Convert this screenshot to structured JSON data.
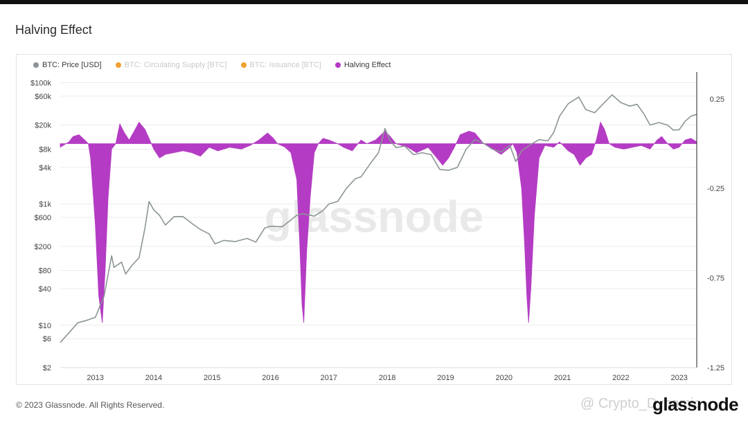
{
  "page": {
    "title": "Halving Effect",
    "footer": "© 2023 Glassnode. All Rights Reserved.",
    "brand": "glassnode",
    "social_overlay": "@ Crypto_Dynamic",
    "watermark": "glassnode"
  },
  "legend": [
    {
      "label": "BTC: Price [USD]",
      "color": "#8c9496",
      "muted": false
    },
    {
      "label": "BTC: Circulating Supply [BTC]",
      "color": "#f0a030",
      "muted": true
    },
    {
      "label": "BTC: Issuance [BTC]",
      "color": "#f0a030",
      "muted": true
    },
    {
      "label": "Halving Effect",
      "color": "#b43cc4",
      "muted": false
    }
  ],
  "chart_data": {
    "type": "line",
    "title": "Halving Effect",
    "x_ticks": [
      "2013",
      "2014",
      "2015",
      "2016",
      "2017",
      "2018",
      "2019",
      "2020",
      "2021",
      "2022",
      "2023"
    ],
    "xlim": [
      2012.4,
      2023.3
    ],
    "left_axis": {
      "scale": "log",
      "ticks": [
        {
          "value": 2,
          "label": "$2"
        },
        {
          "value": 6,
          "label": "$6"
        },
        {
          "value": 10,
          "label": "$10"
        },
        {
          "value": 40,
          "label": "$40"
        },
        {
          "value": 80,
          "label": "$80"
        },
        {
          "value": 200,
          "label": "$200"
        },
        {
          "value": 600,
          "label": "$600"
        },
        {
          "value": 1000,
          "label": "$1k"
        },
        {
          "value": 4000,
          "label": "$4k"
        },
        {
          "value": 8000,
          "label": "$8k"
        },
        {
          "value": 20000,
          "label": "$20k"
        },
        {
          "value": 60000,
          "label": "$60k"
        },
        {
          "value": 100000,
          "label": "$100k"
        }
      ],
      "ylim": [
        2,
        150000
      ]
    },
    "right_axis": {
      "scale": "linear",
      "ticks": [
        {
          "value": 0.25,
          "label": "0.25"
        },
        {
          "value": -0.25,
          "label": "-0.25"
        },
        {
          "value": -0.75,
          "label": "-0.75"
        },
        {
          "value": -1.25,
          "label": "-1.25"
        }
      ],
      "ylim": [
        -1.25,
        0.4
      ]
    },
    "grid": true,
    "series": [
      {
        "name": "BTC: Price [USD]",
        "axis": "left",
        "color": "#8c9496",
        "points": [
          [
            2012.4,
            5.2
          ],
          [
            2012.55,
            7.5
          ],
          [
            2012.7,
            11
          ],
          [
            2012.85,
            12
          ],
          [
            2013.0,
            13.5
          ],
          [
            2013.15,
            30
          ],
          [
            2013.28,
            140
          ],
          [
            2013.32,
            90
          ],
          [
            2013.45,
            110
          ],
          [
            2013.52,
            70
          ],
          [
            2013.62,
            95
          ],
          [
            2013.75,
            130
          ],
          [
            2013.85,
            400
          ],
          [
            2013.92,
            1100
          ],
          [
            2014.0,
            800
          ],
          [
            2014.1,
            650
          ],
          [
            2014.2,
            450
          ],
          [
            2014.35,
            620
          ],
          [
            2014.5,
            620
          ],
          [
            2014.65,
            480
          ],
          [
            2014.8,
            380
          ],
          [
            2014.95,
            320
          ],
          [
            2015.05,
            220
          ],
          [
            2015.2,
            250
          ],
          [
            2015.4,
            240
          ],
          [
            2015.6,
            270
          ],
          [
            2015.75,
            235
          ],
          [
            2015.9,
            400
          ],
          [
            2016.0,
            430
          ],
          [
            2016.2,
            420
          ],
          [
            2016.45,
            650
          ],
          [
            2016.55,
            690
          ],
          [
            2016.75,
            630
          ],
          [
            2016.9,
            780
          ],
          [
            2017.0,
            1000
          ],
          [
            2017.15,
            1100
          ],
          [
            2017.3,
            1800
          ],
          [
            2017.45,
            2600
          ],
          [
            2017.55,
            2800
          ],
          [
            2017.7,
            4500
          ],
          [
            2017.85,
            7000
          ],
          [
            2017.96,
            17500
          ],
          [
            2018.05,
            11000
          ],
          [
            2018.15,
            8500
          ],
          [
            2018.3,
            9000
          ],
          [
            2018.45,
            6500
          ],
          [
            2018.6,
            7000
          ],
          [
            2018.75,
            6500
          ],
          [
            2018.9,
            3700
          ],
          [
            2019.05,
            3600
          ],
          [
            2019.2,
            4000
          ],
          [
            2019.35,
            8000
          ],
          [
            2019.5,
            11500
          ],
          [
            2019.65,
            10000
          ],
          [
            2019.8,
            8000
          ],
          [
            2019.95,
            7200
          ],
          [
            2020.1,
            9300
          ],
          [
            2020.2,
            5000
          ],
          [
            2020.3,
            7500
          ],
          [
            2020.45,
            9500
          ],
          [
            2020.6,
            11500
          ],
          [
            2020.75,
            11000
          ],
          [
            2020.85,
            15000
          ],
          [
            2020.95,
            28000
          ],
          [
            2021.1,
            45000
          ],
          [
            2021.28,
            58000
          ],
          [
            2021.4,
            36000
          ],
          [
            2021.55,
            32000
          ],
          [
            2021.7,
            45000
          ],
          [
            2021.85,
            63000
          ],
          [
            2022.0,
            47000
          ],
          [
            2022.15,
            41000
          ],
          [
            2022.28,
            44000
          ],
          [
            2022.4,
            30000
          ],
          [
            2022.5,
            20000
          ],
          [
            2022.65,
            22000
          ],
          [
            2022.8,
            20000
          ],
          [
            2022.9,
            16500
          ],
          [
            2023.0,
            16800
          ],
          [
            2023.1,
            23000
          ],
          [
            2023.2,
            28000
          ],
          [
            2023.3,
            30000
          ]
        ]
      },
      {
        "name": "Halving Effect",
        "axis": "right",
        "color": "#b43cc4",
        "points": [
          [
            2012.4,
            -0.02
          ],
          [
            2012.55,
            0.01
          ],
          [
            2012.62,
            0.04
          ],
          [
            2012.72,
            0.05
          ],
          [
            2012.82,
            0.02
          ],
          [
            2012.88,
            0.0
          ],
          [
            2012.92,
            -0.08
          ],
          [
            2013.0,
            -0.45
          ],
          [
            2013.06,
            -0.85
          ],
          [
            2013.12,
            -1.0
          ],
          [
            2013.17,
            -0.7
          ],
          [
            2013.22,
            -0.3
          ],
          [
            2013.28,
            -0.03
          ],
          [
            2013.35,
            0.0
          ],
          [
            2013.42,
            0.11
          ],
          [
            2013.5,
            0.06
          ],
          [
            2013.58,
            0.02
          ],
          [
            2013.65,
            0.06
          ],
          [
            2013.75,
            0.12
          ],
          [
            2013.85,
            0.08
          ],
          [
            2013.92,
            0.03
          ],
          [
            2014.0,
            -0.03
          ],
          [
            2014.1,
            -0.08
          ],
          [
            2014.2,
            -0.06
          ],
          [
            2014.35,
            -0.05
          ],
          [
            2014.5,
            -0.04
          ],
          [
            2014.65,
            -0.05
          ],
          [
            2014.8,
            -0.07
          ],
          [
            2014.95,
            -0.02
          ],
          [
            2015.1,
            -0.04
          ],
          [
            2015.3,
            -0.02
          ],
          [
            2015.5,
            -0.03
          ],
          [
            2015.65,
            -0.01
          ],
          [
            2015.8,
            0.02
          ],
          [
            2015.95,
            0.06
          ],
          [
            2016.05,
            0.03
          ],
          [
            2016.12,
            0.0
          ],
          [
            2016.25,
            -0.02
          ],
          [
            2016.35,
            -0.05
          ],
          [
            2016.45,
            -0.2
          ],
          [
            2016.5,
            -0.55
          ],
          [
            2016.54,
            -0.9
          ],
          [
            2016.57,
            -1.0
          ],
          [
            2016.62,
            -0.6
          ],
          [
            2016.68,
            -0.3
          ],
          [
            2016.75,
            -0.05
          ],
          [
            2016.82,
            0.0
          ],
          [
            2016.9,
            0.03
          ],
          [
            2017.0,
            0.02
          ],
          [
            2017.15,
            0.0
          ],
          [
            2017.25,
            -0.02
          ],
          [
            2017.4,
            -0.04
          ],
          [
            2017.55,
            0.02
          ],
          [
            2017.65,
            0.0
          ],
          [
            2017.8,
            0.02
          ],
          [
            2017.96,
            0.07
          ],
          [
            2018.05,
            0.04
          ],
          [
            2018.15,
            0.0
          ],
          [
            2018.35,
            -0.02
          ],
          [
            2018.5,
            -0.05
          ],
          [
            2018.7,
            -0.02
          ],
          [
            2018.8,
            -0.06
          ],
          [
            2018.95,
            -0.12
          ],
          [
            2019.05,
            -0.08
          ],
          [
            2019.15,
            -0.02
          ],
          [
            2019.25,
            0.05
          ],
          [
            2019.4,
            0.07
          ],
          [
            2019.5,
            0.06
          ],
          [
            2019.65,
            0.0
          ],
          [
            2019.8,
            -0.03
          ],
          [
            2019.95,
            -0.06
          ],
          [
            2020.1,
            -0.02
          ],
          [
            2020.15,
            0.0
          ],
          [
            2020.22,
            -0.05
          ],
          [
            2020.3,
            -0.25
          ],
          [
            2020.35,
            -0.55
          ],
          [
            2020.39,
            -0.85
          ],
          [
            2020.42,
            -1.0
          ],
          [
            2020.46,
            -0.8
          ],
          [
            2020.52,
            -0.4
          ],
          [
            2020.6,
            -0.08
          ],
          [
            2020.7,
            -0.01
          ],
          [
            2020.85,
            -0.02
          ],
          [
            2020.95,
            0.01
          ],
          [
            2021.1,
            -0.04
          ],
          [
            2021.2,
            -0.06
          ],
          [
            2021.3,
            -0.12
          ],
          [
            2021.4,
            -0.08
          ],
          [
            2021.5,
            -0.06
          ],
          [
            2021.58,
            0.02
          ],
          [
            2021.65,
            0.12
          ],
          [
            2021.72,
            0.08
          ],
          [
            2021.8,
            0.0
          ],
          [
            2021.9,
            -0.02
          ],
          [
            2022.05,
            -0.03
          ],
          [
            2022.2,
            -0.02
          ],
          [
            2022.35,
            -0.01
          ],
          [
            2022.5,
            -0.03
          ],
          [
            2022.62,
            0.02
          ],
          [
            2022.7,
            0.04
          ],
          [
            2022.8,
            0.0
          ],
          [
            2022.9,
            -0.03
          ],
          [
            2023.0,
            -0.02
          ],
          [
            2023.1,
            0.02
          ],
          [
            2023.2,
            0.03
          ],
          [
            2023.3,
            0.01
          ]
        ]
      }
    ]
  }
}
